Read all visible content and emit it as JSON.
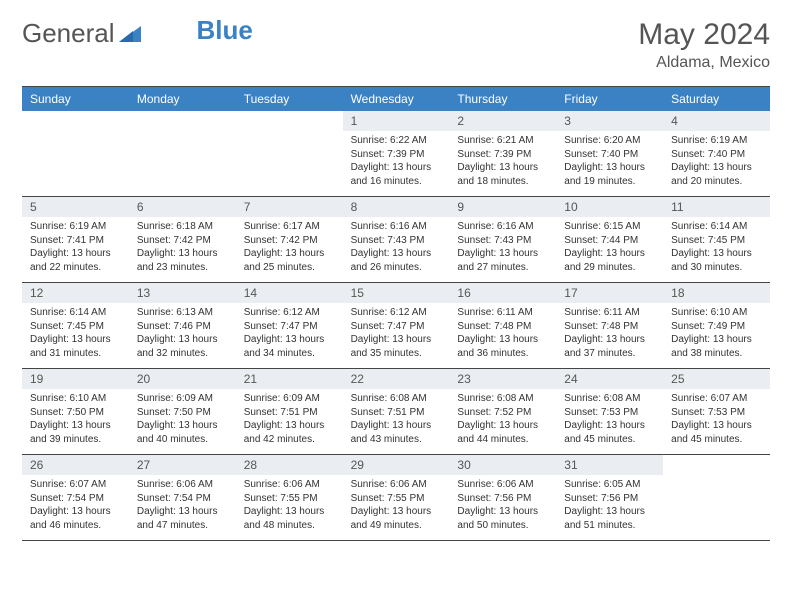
{
  "brand": {
    "part1": "General",
    "part2": "Blue"
  },
  "header": {
    "month": "May 2024",
    "location": "Aldama, Mexico"
  },
  "colors": {
    "header_bg": "#3b82c4",
    "header_text": "#ffffff",
    "daynum_bg": "#eaeef2",
    "border": "#444444",
    "text": "#333333",
    "title_text": "#555555"
  },
  "day_names": [
    "Sunday",
    "Monday",
    "Tuesday",
    "Wednesday",
    "Thursday",
    "Friday",
    "Saturday"
  ],
  "weeks": [
    [
      null,
      null,
      null,
      {
        "n": "1",
        "sr": "Sunrise: 6:22 AM",
        "ss": "Sunset: 7:39 PM",
        "d1": "Daylight: 13 hours",
        "d2": "and 16 minutes."
      },
      {
        "n": "2",
        "sr": "Sunrise: 6:21 AM",
        "ss": "Sunset: 7:39 PM",
        "d1": "Daylight: 13 hours",
        "d2": "and 18 minutes."
      },
      {
        "n": "3",
        "sr": "Sunrise: 6:20 AM",
        "ss": "Sunset: 7:40 PM",
        "d1": "Daylight: 13 hours",
        "d2": "and 19 minutes."
      },
      {
        "n": "4",
        "sr": "Sunrise: 6:19 AM",
        "ss": "Sunset: 7:40 PM",
        "d1": "Daylight: 13 hours",
        "d2": "and 20 minutes."
      }
    ],
    [
      {
        "n": "5",
        "sr": "Sunrise: 6:19 AM",
        "ss": "Sunset: 7:41 PM",
        "d1": "Daylight: 13 hours",
        "d2": "and 22 minutes."
      },
      {
        "n": "6",
        "sr": "Sunrise: 6:18 AM",
        "ss": "Sunset: 7:42 PM",
        "d1": "Daylight: 13 hours",
        "d2": "and 23 minutes."
      },
      {
        "n": "7",
        "sr": "Sunrise: 6:17 AM",
        "ss": "Sunset: 7:42 PM",
        "d1": "Daylight: 13 hours",
        "d2": "and 25 minutes."
      },
      {
        "n": "8",
        "sr": "Sunrise: 6:16 AM",
        "ss": "Sunset: 7:43 PM",
        "d1": "Daylight: 13 hours",
        "d2": "and 26 minutes."
      },
      {
        "n": "9",
        "sr": "Sunrise: 6:16 AM",
        "ss": "Sunset: 7:43 PM",
        "d1": "Daylight: 13 hours",
        "d2": "and 27 minutes."
      },
      {
        "n": "10",
        "sr": "Sunrise: 6:15 AM",
        "ss": "Sunset: 7:44 PM",
        "d1": "Daylight: 13 hours",
        "d2": "and 29 minutes."
      },
      {
        "n": "11",
        "sr": "Sunrise: 6:14 AM",
        "ss": "Sunset: 7:45 PM",
        "d1": "Daylight: 13 hours",
        "d2": "and 30 minutes."
      }
    ],
    [
      {
        "n": "12",
        "sr": "Sunrise: 6:14 AM",
        "ss": "Sunset: 7:45 PM",
        "d1": "Daylight: 13 hours",
        "d2": "and 31 minutes."
      },
      {
        "n": "13",
        "sr": "Sunrise: 6:13 AM",
        "ss": "Sunset: 7:46 PM",
        "d1": "Daylight: 13 hours",
        "d2": "and 32 minutes."
      },
      {
        "n": "14",
        "sr": "Sunrise: 6:12 AM",
        "ss": "Sunset: 7:47 PM",
        "d1": "Daylight: 13 hours",
        "d2": "and 34 minutes."
      },
      {
        "n": "15",
        "sr": "Sunrise: 6:12 AM",
        "ss": "Sunset: 7:47 PM",
        "d1": "Daylight: 13 hours",
        "d2": "and 35 minutes."
      },
      {
        "n": "16",
        "sr": "Sunrise: 6:11 AM",
        "ss": "Sunset: 7:48 PM",
        "d1": "Daylight: 13 hours",
        "d2": "and 36 minutes."
      },
      {
        "n": "17",
        "sr": "Sunrise: 6:11 AM",
        "ss": "Sunset: 7:48 PM",
        "d1": "Daylight: 13 hours",
        "d2": "and 37 minutes."
      },
      {
        "n": "18",
        "sr": "Sunrise: 6:10 AM",
        "ss": "Sunset: 7:49 PM",
        "d1": "Daylight: 13 hours",
        "d2": "and 38 minutes."
      }
    ],
    [
      {
        "n": "19",
        "sr": "Sunrise: 6:10 AM",
        "ss": "Sunset: 7:50 PM",
        "d1": "Daylight: 13 hours",
        "d2": "and 39 minutes."
      },
      {
        "n": "20",
        "sr": "Sunrise: 6:09 AM",
        "ss": "Sunset: 7:50 PM",
        "d1": "Daylight: 13 hours",
        "d2": "and 40 minutes."
      },
      {
        "n": "21",
        "sr": "Sunrise: 6:09 AM",
        "ss": "Sunset: 7:51 PM",
        "d1": "Daylight: 13 hours",
        "d2": "and 42 minutes."
      },
      {
        "n": "22",
        "sr": "Sunrise: 6:08 AM",
        "ss": "Sunset: 7:51 PM",
        "d1": "Daylight: 13 hours",
        "d2": "and 43 minutes."
      },
      {
        "n": "23",
        "sr": "Sunrise: 6:08 AM",
        "ss": "Sunset: 7:52 PM",
        "d1": "Daylight: 13 hours",
        "d2": "and 44 minutes."
      },
      {
        "n": "24",
        "sr": "Sunrise: 6:08 AM",
        "ss": "Sunset: 7:53 PM",
        "d1": "Daylight: 13 hours",
        "d2": "and 45 minutes."
      },
      {
        "n": "25",
        "sr": "Sunrise: 6:07 AM",
        "ss": "Sunset: 7:53 PM",
        "d1": "Daylight: 13 hours",
        "d2": "and 45 minutes."
      }
    ],
    [
      {
        "n": "26",
        "sr": "Sunrise: 6:07 AM",
        "ss": "Sunset: 7:54 PM",
        "d1": "Daylight: 13 hours",
        "d2": "and 46 minutes."
      },
      {
        "n": "27",
        "sr": "Sunrise: 6:06 AM",
        "ss": "Sunset: 7:54 PM",
        "d1": "Daylight: 13 hours",
        "d2": "and 47 minutes."
      },
      {
        "n": "28",
        "sr": "Sunrise: 6:06 AM",
        "ss": "Sunset: 7:55 PM",
        "d1": "Daylight: 13 hours",
        "d2": "and 48 minutes."
      },
      {
        "n": "29",
        "sr": "Sunrise: 6:06 AM",
        "ss": "Sunset: 7:55 PM",
        "d1": "Daylight: 13 hours",
        "d2": "and 49 minutes."
      },
      {
        "n": "30",
        "sr": "Sunrise: 6:06 AM",
        "ss": "Sunset: 7:56 PM",
        "d1": "Daylight: 13 hours",
        "d2": "and 50 minutes."
      },
      {
        "n": "31",
        "sr": "Sunrise: 6:05 AM",
        "ss": "Sunset: 7:56 PM",
        "d1": "Daylight: 13 hours",
        "d2": "and 51 minutes."
      },
      null
    ]
  ]
}
